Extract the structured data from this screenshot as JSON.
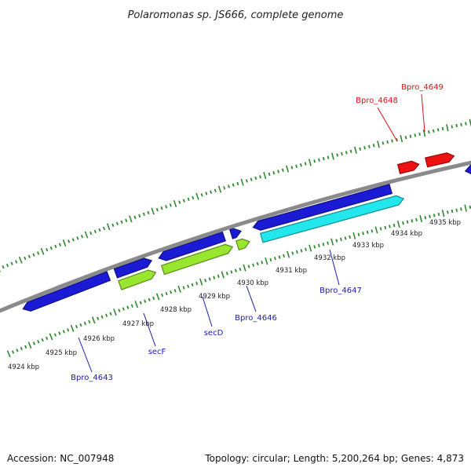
{
  "title": "Polaromonas sp. JS666, complete genome",
  "footer": {
    "accession": "Accession: NC_007948",
    "summary": "Topology: circular; Length: 5,200,264 bp; Genes: 4,873"
  },
  "colors": {
    "backbone": "#8a8a8a",
    "ticks": "#2f8a2f",
    "gene_blue": "#1b1bd6",
    "gene_green": "#98e62e",
    "gene_cyan": "#22e8ee",
    "gene_red": "#ee1111",
    "label_blue": "#1a1aa8",
    "label_red": "#dd1111"
  },
  "scale_labels": [
    {
      "kbp": 4924,
      "text": "4924 kbp"
    },
    {
      "kbp": 4925,
      "text": "4925 kbp"
    },
    {
      "kbp": 4926,
      "text": "4926 kbp"
    },
    {
      "kbp": 4927,
      "text": "4927 kbp"
    },
    {
      "kbp": 4928,
      "text": "4928 kbp"
    },
    {
      "kbp": 4929,
      "text": "4929 kbp"
    },
    {
      "kbp": 4930,
      "text": "4930 kbp"
    },
    {
      "kbp": 4931,
      "text": "4931 kbp"
    },
    {
      "kbp": 4932,
      "text": "4932 kbp"
    },
    {
      "kbp": 4933,
      "text": "4933 kbp"
    },
    {
      "kbp": 4934,
      "text": "4934 kbp"
    },
    {
      "kbp": 4935,
      "text": "4935 kbp"
    }
  ],
  "gene_labels": [
    {
      "text": "Bpro_4643",
      "color": "label_blue"
    },
    {
      "text": "secF",
      "color": "label_blue"
    },
    {
      "text": "secD",
      "color": "label_blue"
    },
    {
      "text": "Bpro_4646",
      "color": "label_blue"
    },
    {
      "text": "Bpro_4647",
      "color": "label_blue"
    },
    {
      "text": "Bpro_4648",
      "color": "label_red"
    },
    {
      "text": "Bpro_4649",
      "color": "label_red"
    }
  ]
}
